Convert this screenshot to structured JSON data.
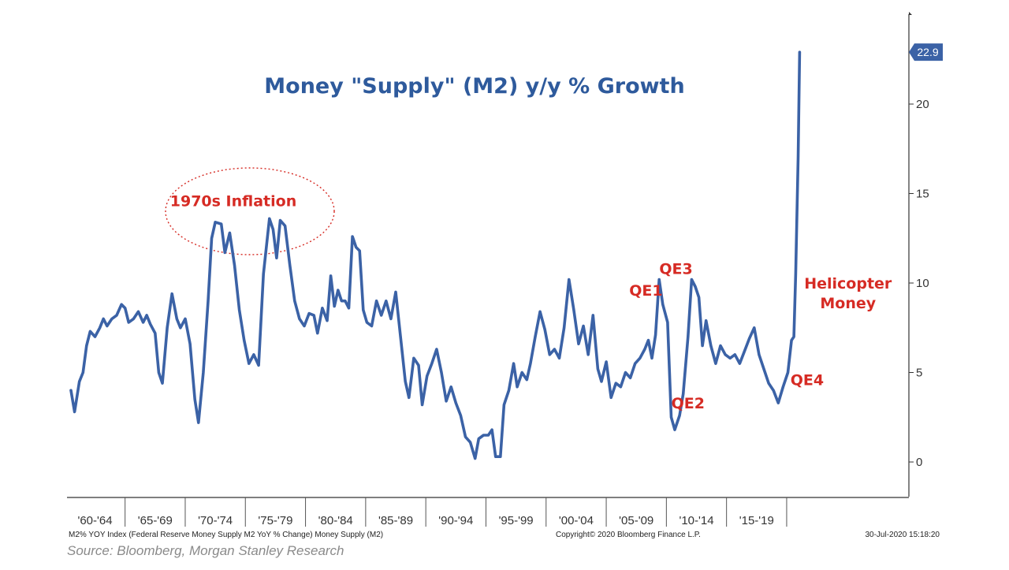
{
  "colors": {
    "series": "#3b62a6",
    "annotation": "#d62b24",
    "title": "#2e5a9c",
    "axis": "#333333",
    "source": "#8a8a8a"
  },
  "chart_data": {
    "type": "line",
    "title": "Money \"Supply\" (M2) y/y % Growth",
    "xlabel": "",
    "ylabel": "",
    "ylim": [
      -2,
      25
    ],
    "xlim": [
      1960,
      2021.6
    ],
    "yticks": [
      0,
      5,
      10,
      15,
      20
    ],
    "x_tick_labels": [
      "'60-'64",
      "'65-'69",
      "'70-'74",
      "'75-'79",
      "'80-'84",
      "'85-'89",
      "'90-'94",
      "'95-'99",
      "'00-'04",
      "'05-'09",
      "'10-'14",
      "'15-'19"
    ],
    "last_value_label": "22.9",
    "series": [
      {
        "name": "M2% YOY Index",
        "points": [
          [
            1960.0,
            4.0
          ],
          [
            1960.3,
            2.8
          ],
          [
            1960.7,
            4.5
          ],
          [
            1961.0,
            5.0
          ],
          [
            1961.3,
            6.5
          ],
          [
            1961.6,
            7.3
          ],
          [
            1962.0,
            7.0
          ],
          [
            1962.4,
            7.5
          ],
          [
            1962.7,
            8.0
          ],
          [
            1963.0,
            7.6
          ],
          [
            1963.4,
            8.0
          ],
          [
            1963.8,
            8.2
          ],
          [
            1964.2,
            8.8
          ],
          [
            1964.5,
            8.6
          ],
          [
            1964.8,
            7.8
          ],
          [
            1965.2,
            8.0
          ],
          [
            1965.6,
            8.4
          ],
          [
            1966.0,
            7.8
          ],
          [
            1966.3,
            8.2
          ],
          [
            1966.6,
            7.7
          ],
          [
            1967.0,
            7.2
          ],
          [
            1967.3,
            5.0
          ],
          [
            1967.6,
            4.4
          ],
          [
            1968.0,
            7.5
          ],
          [
            1968.4,
            9.4
          ],
          [
            1968.8,
            8.0
          ],
          [
            1969.1,
            7.5
          ],
          [
            1969.5,
            8.0
          ],
          [
            1969.9,
            6.6
          ],
          [
            1970.3,
            3.5
          ],
          [
            1970.6,
            2.2
          ],
          [
            1971.0,
            5.0
          ],
          [
            1971.4,
            9.0
          ],
          [
            1971.7,
            12.5
          ],
          [
            1972.0,
            13.4
          ],
          [
            1972.5,
            13.3
          ],
          [
            1972.8,
            11.7
          ],
          [
            1973.2,
            12.8
          ],
          [
            1973.6,
            11.0
          ],
          [
            1974.0,
            8.5
          ],
          [
            1974.4,
            6.8
          ],
          [
            1974.8,
            5.5
          ],
          [
            1975.2,
            6.0
          ],
          [
            1975.6,
            5.4
          ],
          [
            1976.0,
            10.5
          ],
          [
            1976.5,
            13.6
          ],
          [
            1976.8,
            13.0
          ],
          [
            1977.1,
            11.4
          ],
          [
            1977.4,
            13.5
          ],
          [
            1977.8,
            13.2
          ],
          [
            1978.2,
            11.0
          ],
          [
            1978.6,
            9.0
          ],
          [
            1979.0,
            8.0
          ],
          [
            1979.4,
            7.6
          ],
          [
            1979.8,
            8.3
          ],
          [
            1980.2,
            8.2
          ],
          [
            1980.5,
            7.2
          ],
          [
            1980.9,
            8.6
          ],
          [
            1981.3,
            7.9
          ],
          [
            1981.6,
            10.4
          ],
          [
            1981.9,
            8.7
          ],
          [
            1982.2,
            9.6
          ],
          [
            1982.5,
            9.0
          ],
          [
            1982.8,
            9.0
          ],
          [
            1983.1,
            8.6
          ],
          [
            1983.4,
            12.6
          ],
          [
            1983.7,
            12.0
          ],
          [
            1984.0,
            11.8
          ],
          [
            1984.3,
            8.5
          ],
          [
            1984.6,
            7.8
          ],
          [
            1985.0,
            7.6
          ],
          [
            1985.4,
            9.0
          ],
          [
            1985.8,
            8.2
          ],
          [
            1986.2,
            9.0
          ],
          [
            1986.6,
            8.0
          ],
          [
            1987.0,
            9.5
          ],
          [
            1987.4,
            7.0
          ],
          [
            1987.8,
            4.5
          ],
          [
            1988.1,
            3.6
          ],
          [
            1988.5,
            5.8
          ],
          [
            1988.9,
            5.4
          ],
          [
            1989.2,
            3.2
          ],
          [
            1989.6,
            4.8
          ],
          [
            1990.0,
            5.5
          ],
          [
            1990.4,
            6.3
          ],
          [
            1990.8,
            5.0
          ],
          [
            1991.2,
            3.4
          ],
          [
            1991.6,
            4.2
          ],
          [
            1992.0,
            3.3
          ],
          [
            1992.4,
            2.6
          ],
          [
            1992.8,
            1.4
          ],
          [
            1993.2,
            1.1
          ],
          [
            1993.6,
            0.2
          ],
          [
            1993.9,
            1.3
          ],
          [
            1994.3,
            1.5
          ],
          [
            1994.7,
            1.5
          ],
          [
            1995.0,
            1.8
          ],
          [
            1995.3,
            0.3
          ],
          [
            1995.7,
            0.3
          ],
          [
            1996.0,
            3.2
          ],
          [
            1996.4,
            4.0
          ],
          [
            1996.8,
            5.5
          ],
          [
            1997.1,
            4.2
          ],
          [
            1997.5,
            5.0
          ],
          [
            1997.9,
            4.6
          ],
          [
            1998.2,
            5.5
          ],
          [
            1998.6,
            7.0
          ],
          [
            1999.0,
            8.4
          ],
          [
            1999.4,
            7.4
          ],
          [
            1999.8,
            6.0
          ],
          [
            2000.2,
            6.3
          ],
          [
            2000.6,
            5.8
          ],
          [
            2001.0,
            7.5
          ],
          [
            2001.4,
            10.2
          ],
          [
            2001.8,
            8.5
          ],
          [
            2002.2,
            6.6
          ],
          [
            2002.6,
            7.6
          ],
          [
            2003.0,
            6.0
          ],
          [
            2003.4,
            8.2
          ],
          [
            2003.8,
            5.2
          ],
          [
            2004.1,
            4.5
          ],
          [
            2004.5,
            5.6
          ],
          [
            2004.9,
            3.6
          ],
          [
            2005.3,
            4.4
          ],
          [
            2005.7,
            4.2
          ],
          [
            2006.1,
            5.0
          ],
          [
            2006.5,
            4.7
          ],
          [
            2006.9,
            5.5
          ],
          [
            2007.3,
            5.8
          ],
          [
            2007.7,
            6.3
          ],
          [
            2008.0,
            6.8
          ],
          [
            2008.3,
            5.8
          ],
          [
            2008.6,
            7.1
          ],
          [
            2008.9,
            10.2
          ],
          [
            2009.2,
            8.8
          ],
          [
            2009.6,
            7.8
          ],
          [
            2009.9,
            2.5
          ],
          [
            2010.2,
            1.8
          ],
          [
            2010.6,
            2.6
          ],
          [
            2010.9,
            3.8
          ],
          [
            2011.3,
            7.0
          ],
          [
            2011.6,
            10.2
          ],
          [
            2011.9,
            9.8
          ],
          [
            2012.2,
            9.2
          ],
          [
            2012.5,
            6.5
          ],
          [
            2012.8,
            7.9
          ],
          [
            2013.2,
            6.5
          ],
          [
            2013.6,
            5.5
          ],
          [
            2014.0,
            6.5
          ],
          [
            2014.4,
            6.0
          ],
          [
            2014.8,
            5.8
          ],
          [
            2015.2,
            6.0
          ],
          [
            2015.6,
            5.5
          ],
          [
            2016.0,
            6.2
          ],
          [
            2016.4,
            6.9
          ],
          [
            2016.8,
            7.5
          ],
          [
            2017.2,
            6.0
          ],
          [
            2017.6,
            5.2
          ],
          [
            2018.0,
            4.4
          ],
          [
            2018.4,
            4.0
          ],
          [
            2018.8,
            3.3
          ],
          [
            2019.2,
            4.2
          ],
          [
            2019.6,
            5.0
          ],
          [
            2019.9,
            6.8
          ],
          [
            2020.1,
            7.0
          ],
          [
            2020.25,
            10.5
          ],
          [
            2020.45,
            17.0
          ],
          [
            2020.58,
            22.9
          ]
        ]
      }
    ],
    "annotations": [
      {
        "label": "1970s Inflation",
        "x": 1973.5,
        "y": 14.3
      },
      {
        "label": "QE1",
        "x": 2007.8,
        "y": 9.3
      },
      {
        "label": "QE3",
        "x": 2010.3,
        "y": 10.5
      },
      {
        "label": "QE2",
        "x": 2011.3,
        "y": 3.0
      },
      {
        "label": "QE4",
        "x": 2021.2,
        "y": 4.3
      },
      {
        "label": "Helicopter",
        "x": 2024.6,
        "y": 9.7
      },
      {
        "label": "Money",
        "x": 2024.6,
        "y": 8.6
      }
    ]
  },
  "footer": {
    "index_desc": "M2% YOY Index (Federal Reserve Money Supply M2 YoY % Change) Money Supply (M2)",
    "copyright": "Copyright© 2020 Bloomberg Finance L.P.",
    "datetime": "30-Jul-2020 15:18:20",
    "source": "Source: Bloomberg, Morgan Stanley Research"
  }
}
